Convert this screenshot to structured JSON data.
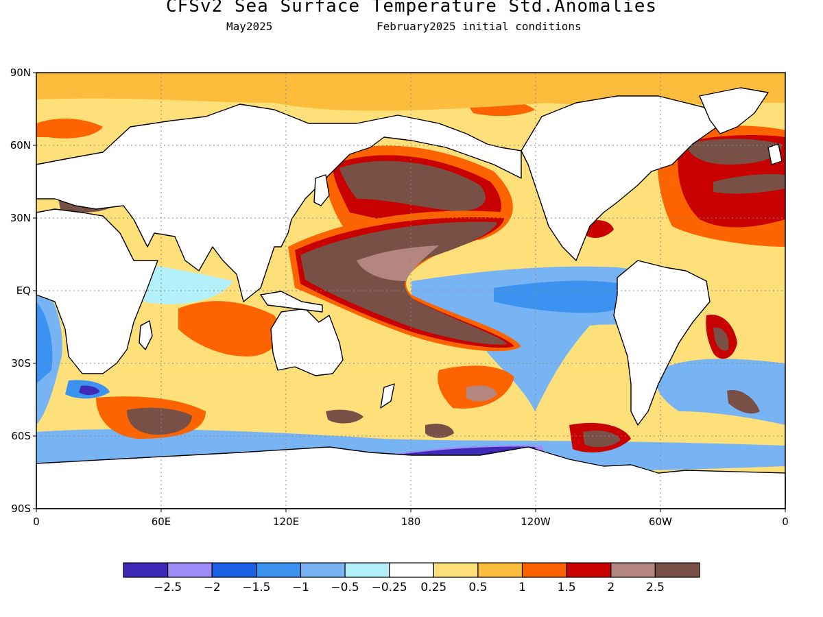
{
  "title": "CFSv2 Sea Surface Temperature Std.Anomalies",
  "valid_month": "May2025",
  "init_conditions": "February2025 initial conditions",
  "lat_ticks": [
    "90N",
    "60N",
    "30N",
    "EQ",
    "30S",
    "60S",
    "90S"
  ],
  "lon_ticks": [
    "0",
    "60E",
    "120E",
    "180",
    "120W",
    "60W",
    "0"
  ],
  "colorbar": {
    "colors": [
      "#3f2ab8",
      "#9f8bf7",
      "#1c60e6",
      "#3c92f0",
      "#78b4f4",
      "#b4f0fa",
      "#ffffff",
      "#fde07a",
      "#fdbd3c",
      "#fd6400",
      "#c80000",
      "#b48680",
      "#785046"
    ],
    "labels": [
      "-2.5",
      "-2",
      "-1.5",
      "-1",
      "-0.5",
      "-0.25",
      "0.25",
      "0.5",
      "1",
      "1.5",
      "2",
      "2.5"
    ]
  },
  "land_color": "#ffffff",
  "grid": true
}
